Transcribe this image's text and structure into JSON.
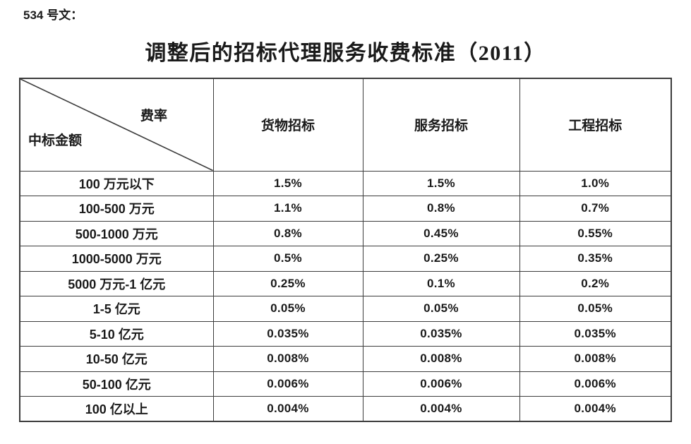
{
  "page": {
    "doc_label": "534 号文：",
    "title": "调整后的招标代理服务收费标准（2011）"
  },
  "table": {
    "corner": {
      "top_right": "费率",
      "bottom_left": "中标金额"
    },
    "columns": [
      "货物招标",
      "服务招标",
      "工程招标"
    ],
    "rows": [
      {
        "label": "100 万元以下",
        "values": [
          "1.5%",
          "1.5%",
          "1.0%"
        ]
      },
      {
        "label": "100-500 万元",
        "values": [
          "1.1%",
          "0.8%",
          "0.7%"
        ]
      },
      {
        "label": "500-1000 万元",
        "values": [
          "0.8%",
          "0.45%",
          "0.55%"
        ]
      },
      {
        "label": "1000-5000 万元",
        "values": [
          "0.5%",
          "0.25%",
          "0.35%"
        ]
      },
      {
        "label": "5000 万元-1 亿元",
        "values": [
          "0.25%",
          "0.1%",
          "0.2%"
        ]
      },
      {
        "label": "1-5 亿元",
        "values": [
          "0.05%",
          "0.05%",
          "0.05%"
        ]
      },
      {
        "label": "5-10 亿元",
        "values": [
          "0.035%",
          "0.035%",
          "0.035%"
        ]
      },
      {
        "label": "10-50 亿元",
        "values": [
          "0.008%",
          "0.008%",
          "0.008%"
        ]
      },
      {
        "label": "50-100 亿元",
        "values": [
          "0.006%",
          "0.006%",
          "0.006%"
        ]
      },
      {
        "label": "100 亿以上",
        "values": [
          "0.004%",
          "0.004%",
          "0.004%"
        ]
      }
    ]
  },
  "colors": {
    "text": "#1a1a1a",
    "border": "#3c3c3c",
    "background": "#ffffff"
  }
}
